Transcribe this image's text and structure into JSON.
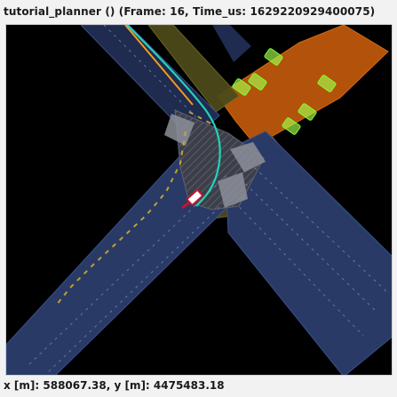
{
  "header": {
    "title": "tutorial_planner () (Frame: 16, Time_us: 1629220929400075)"
  },
  "footer": {
    "coords": "x [m]: 588067.38, y [m]: 4475483.18"
  },
  "colors": {
    "map_background": "#000000",
    "lane": "#2a3a66",
    "lane_dark": "#1f2b4f",
    "road_edge": "#3b4f8c",
    "intersection": "#3c3f49",
    "crosswalk": "#8d9099",
    "sidewalk": "#4c4a1a",
    "parking_lot": "#b3520a",
    "parking_slot": "#a6ff4f",
    "route_path": "#23d3b8",
    "ego_vehicle": "#ffffff",
    "ego_outline": "#c2142f",
    "lane_marking": "#d2aa2b",
    "orange_line": "#f39a1d"
  }
}
